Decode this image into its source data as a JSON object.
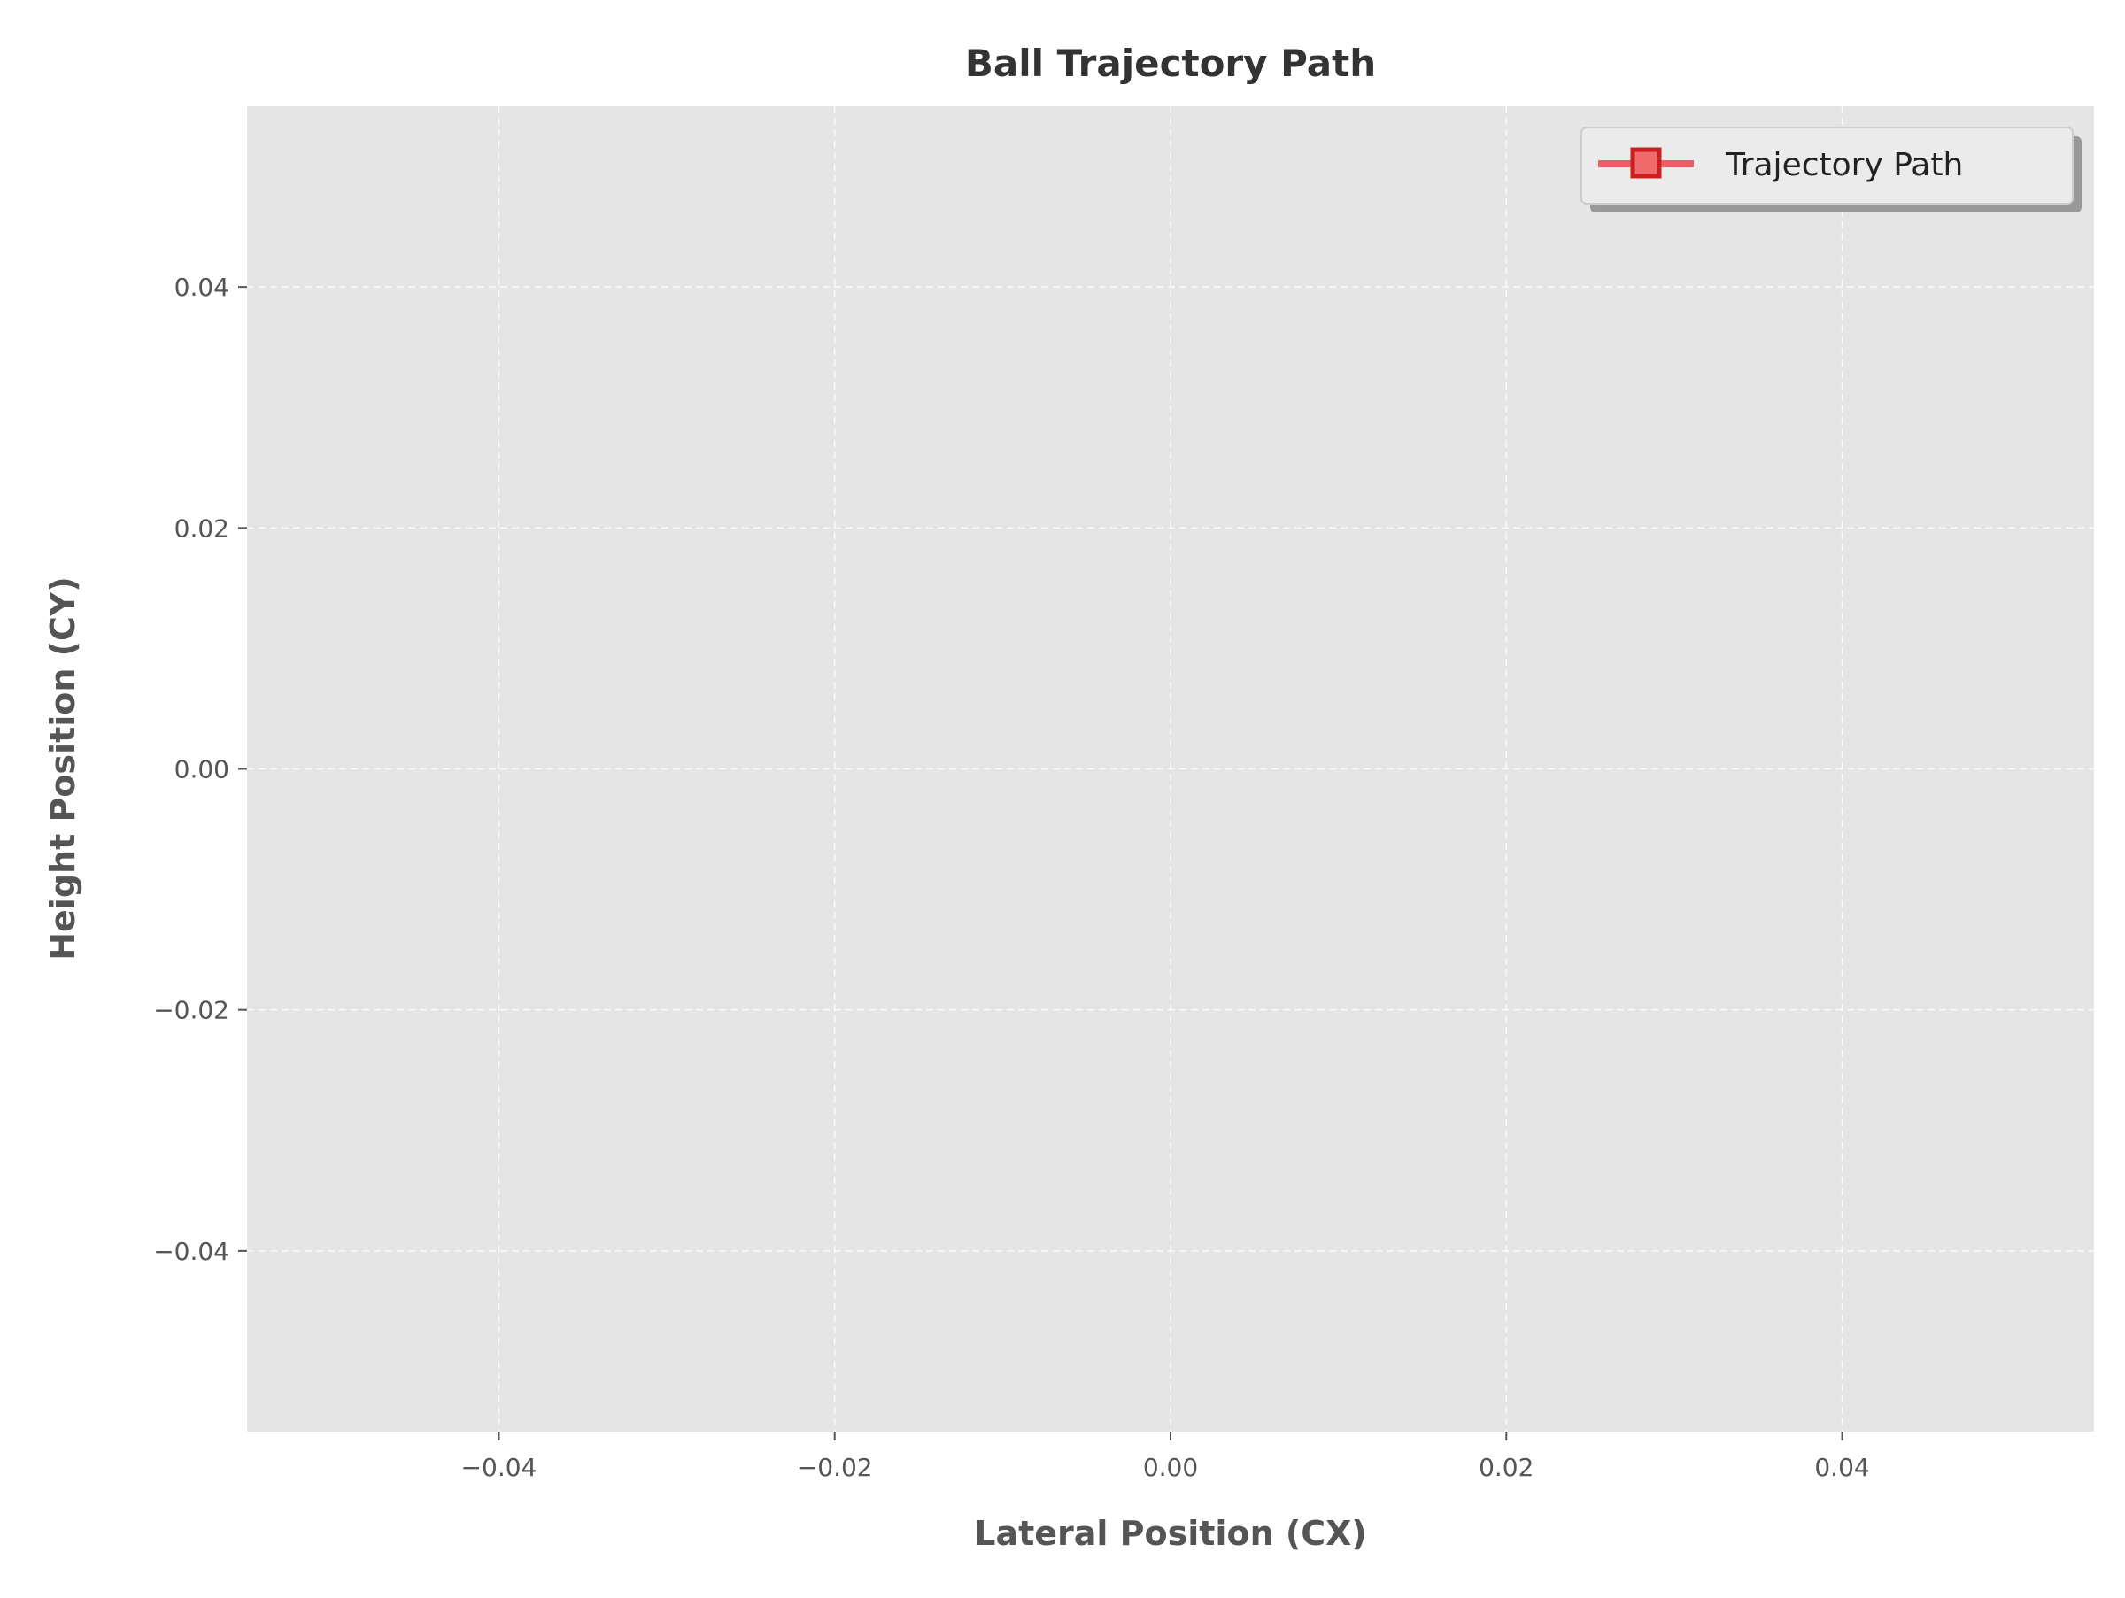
{
  "chart_data": {
    "type": "line",
    "title": "Ball Trajectory Path",
    "xlabel": "Lateral Position (CX)",
    "ylabel": "Height Position (CY)",
    "xlim": [
      -0.055,
      0.055
    ],
    "ylim": [
      -0.055,
      0.055
    ],
    "xticks": [
      -0.04,
      -0.02,
      0.0,
      0.02,
      0.04
    ],
    "yticks": [
      -0.04,
      -0.02,
      0.0,
      0.02,
      0.04
    ],
    "xtick_labels": [
      "−0.04",
      "−0.02",
      "0.00",
      "0.02",
      "0.04"
    ],
    "ytick_labels": [
      "−0.04",
      "−0.02",
      "0.00",
      "0.02",
      "0.04"
    ],
    "grid": true,
    "legend_position": "top-right",
    "series": [
      {
        "name": "Trajectory Path",
        "x": [],
        "y": [],
        "color": "#e8474f",
        "marker": "square",
        "marker_color": "#cc1f1f"
      }
    ],
    "colors": {
      "plot_background": "#e5e5e5",
      "grid": "#ffffff",
      "text": "#555555"
    }
  }
}
